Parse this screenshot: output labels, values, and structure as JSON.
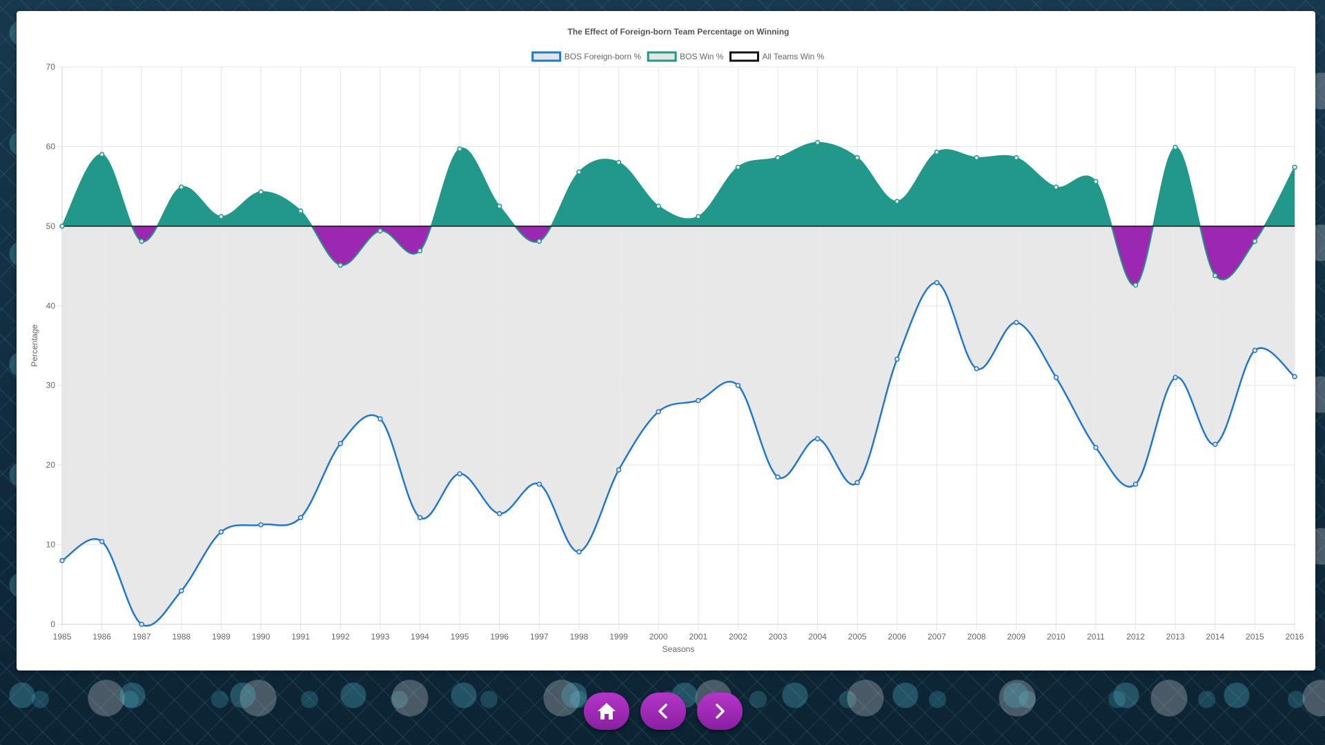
{
  "chart_data": {
    "type": "line",
    "title": "The Effect of Foreign-born Team Percentage on Winning",
    "xlabel": "Seasons",
    "ylabel": "Percentage",
    "ylim": [
      0,
      70
    ],
    "yticks": [
      0,
      10,
      20,
      30,
      40,
      50,
      60,
      70
    ],
    "grid": true,
    "legend_position": "top",
    "x": [
      "1985",
      "1986",
      "1987",
      "1988",
      "1989",
      "1990",
      "1991",
      "1992",
      "1993",
      "1994",
      "1995",
      "1996",
      "1997",
      "1998",
      "1999",
      "2000",
      "2001",
      "2002",
      "2003",
      "2004",
      "2005",
      "2006",
      "2007",
      "2008",
      "2009",
      "2010",
      "2011",
      "2012",
      "2013",
      "2014",
      "2015",
      "2016"
    ],
    "series": [
      {
        "name": "BOS Foreign-born %",
        "color": "#1f77d0",
        "values": [
          8.0,
          10.4,
          0.0,
          4.2,
          11.6,
          12.5,
          13.4,
          22.7,
          25.8,
          13.4,
          18.9,
          13.9,
          17.6,
          9.1,
          19.4,
          26.7,
          28.1,
          30.0,
          18.5,
          23.3,
          17.8,
          33.3,
          42.9,
          32.1,
          37.9,
          31.0,
          22.2,
          17.6,
          31.0,
          22.6,
          34.4,
          31.1
        ]
      },
      {
        "name": "BOS Win %",
        "color": "#22988a",
        "values": [
          50.0,
          59.0,
          48.1,
          54.9,
          51.2,
          54.3,
          51.9,
          45.1,
          49.4,
          46.9,
          59.7,
          52.5,
          48.1,
          56.8,
          58.0,
          52.5,
          51.2,
          57.4,
          58.6,
          60.5,
          58.6,
          53.1,
          59.3,
          58.6,
          58.6,
          54.9,
          55.6,
          42.6,
          59.9,
          43.8,
          48.1,
          57.4
        ]
      },
      {
        "name": "All Teams Win %",
        "color": "#111111",
        "values": [
          50,
          50,
          50,
          50,
          50,
          50,
          50,
          50,
          50,
          50,
          50,
          50,
          50,
          50,
          50,
          50,
          50,
          50,
          50,
          50,
          50,
          50,
          50,
          50,
          50,
          50,
          50,
          50,
          50,
          50,
          50,
          50
        ]
      }
    ],
    "colors": {
      "above_fill": "#22988a",
      "below_fill": "#9c27b0",
      "area_fill": "#e5e5e5",
      "grid": "#e4e4e4",
      "text": "#666666",
      "title": "#555555"
    }
  },
  "nav": {
    "home_icon": "home-icon",
    "prev_icon": "chevron-left-icon",
    "next_icon": "chevron-right-icon",
    "button_color": "#a02bb8"
  }
}
